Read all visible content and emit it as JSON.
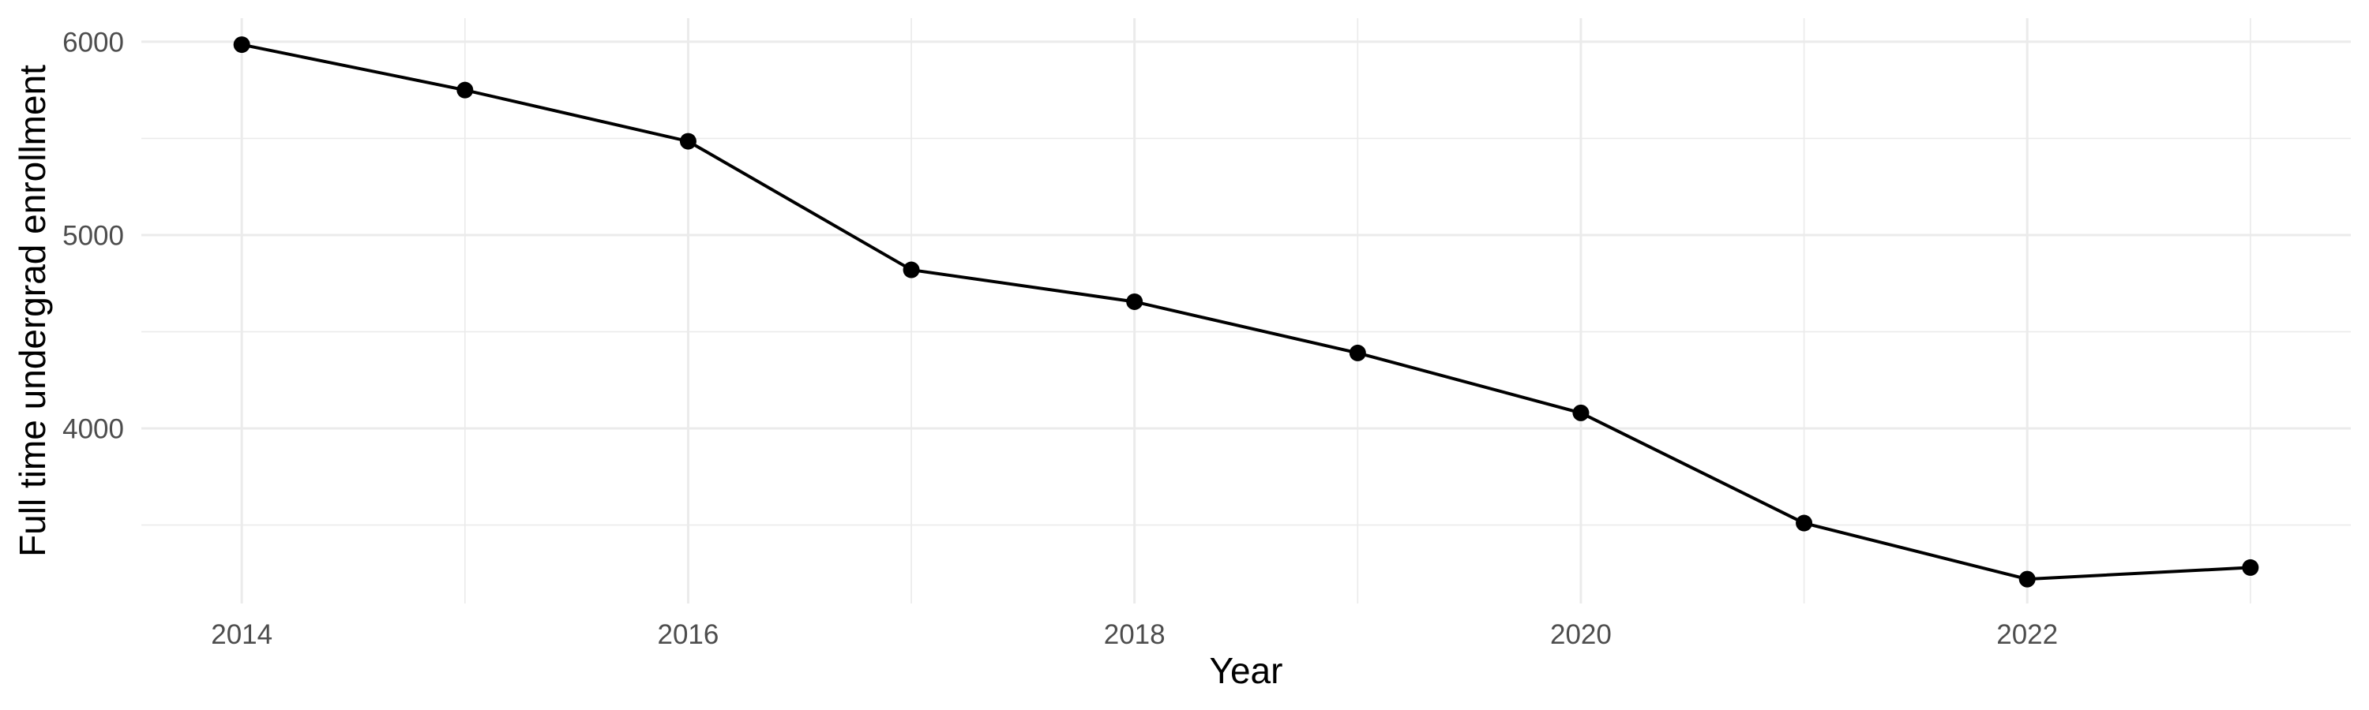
{
  "chart_data": {
    "type": "line",
    "title": "",
    "xlabel": "Year",
    "ylabel": "Full time undergrad enrollment",
    "series": [
      {
        "name": "Full time undergrad enrollment",
        "x": [
          2014,
          2015,
          2016,
          2017,
          2018,
          2019,
          2020,
          2021,
          2022,
          2023
        ],
        "values": [
          5985,
          5750,
          5485,
          4820,
          4655,
          4390,
          4080,
          3510,
          3220,
          3280
        ]
      }
    ],
    "xlim": [
      2013.55,
      2023.45
    ],
    "ylim": [
      3094,
      6122
    ],
    "x_major_ticks": [
      2014,
      2016,
      2018,
      2020,
      2022
    ],
    "x_tick_labels": [
      "2014",
      "2016",
      "2018",
      "2020",
      "2022"
    ],
    "x_minor_ticks": [
      2015,
      2017,
      2019,
      2021,
      2023
    ],
    "y_major_ticks": [
      4000,
      5000,
      6000
    ],
    "y_tick_labels": [
      "4000",
      "5000",
      "6000"
    ],
    "y_minor_ticks": [
      3500,
      4500,
      5500
    ],
    "grid": "major-and-minor",
    "legend": "none",
    "marker": "filled-circle",
    "colors": {
      "background": "#FFFFFF",
      "line": "#000000",
      "marker": "#000000",
      "grid": "#EBEBEB",
      "tick_label": "#4D4D4D",
      "axis_title": "#000000"
    }
  }
}
